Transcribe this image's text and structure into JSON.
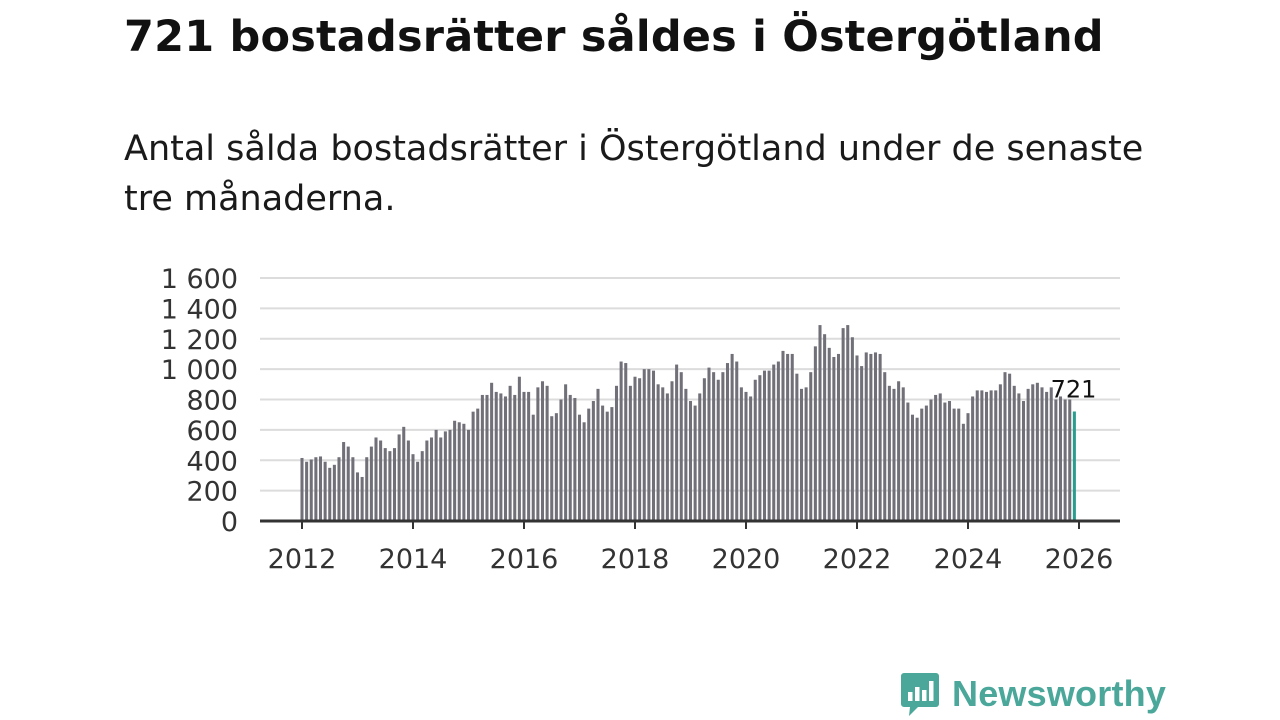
{
  "header": {
    "title": "721 bostadsrätter såldes i Östergötland",
    "subtitle": "Antal sålda bostadsrätter i Östergötland under de senaste tre månaderna."
  },
  "brand": {
    "name": "Newsworthy",
    "icon": "newsworthy-logo-icon",
    "color": "#4aa79a"
  },
  "colors": {
    "bar": "#717079",
    "highlight": "#2a9d8f",
    "grid": "#dcdcdc",
    "axis": "#333333"
  },
  "chart_data": {
    "type": "bar",
    "title": "",
    "xlabel": "",
    "ylabel": "",
    "ylim": [
      0,
      1600
    ],
    "yticks": [
      0,
      200,
      400,
      600,
      800,
      1000,
      1200,
      1400,
      1600
    ],
    "ytick_labels": [
      "0",
      "200",
      "400",
      "600",
      "800",
      "1 000",
      "1 200",
      "1 400",
      "1 600"
    ],
    "xticks": [
      2012,
      2014,
      2016,
      2018,
      2020,
      2022,
      2024,
      2026
    ],
    "xtick_labels": [
      "2012",
      "2014",
      "2016",
      "2018",
      "2020",
      "2022",
      "2024",
      "2026"
    ],
    "start_year": 2012,
    "start_month": 1,
    "grid": true,
    "highlight_last": true,
    "last_value_label": "721",
    "values": [
      415,
      390,
      405,
      420,
      425,
      390,
      350,
      370,
      420,
      520,
      490,
      420,
      320,
      290,
      420,
      490,
      550,
      530,
      480,
      460,
      480,
      570,
      620,
      530,
      440,
      390,
      460,
      530,
      550,
      600,
      550,
      590,
      600,
      660,
      650,
      640,
      600,
      720,
      740,
      830,
      830,
      910,
      850,
      840,
      820,
      890,
      830,
      950,
      850,
      850,
      700,
      880,
      920,
      890,
      690,
      710,
      800,
      900,
      830,
      810,
      700,
      650,
      740,
      790,
      870,
      760,
      720,
      750,
      890,
      1050,
      1040,
      890,
      950,
      940,
      1000,
      1000,
      990,
      900,
      880,
      840,
      920,
      1030,
      980,
      870,
      790,
      760,
      840,
      940,
      1010,
      980,
      930,
      980,
      1040,
      1100,
      1050,
      880,
      850,
      820,
      930,
      960,
      990,
      990,
      1030,
      1050,
      1120,
      1100,
      1100,
      970,
      870,
      880,
      980,
      1150,
      1290,
      1230,
      1140,
      1080,
      1100,
      1270,
      1290,
      1210,
      1090,
      1020,
      1110,
      1100,
      1110,
      1100,
      980,
      890,
      870,
      920,
      880,
      780,
      700,
      680,
      740,
      760,
      800,
      830,
      840,
      780,
      790,
      740,
      740,
      640,
      710,
      820,
      860,
      860,
      850,
      860,
      860,
      900,
      980,
      970,
      890,
      840,
      790,
      870,
      900,
      910,
      880,
      850,
      880,
      800,
      820,
      800,
      800,
      721
    ]
  }
}
